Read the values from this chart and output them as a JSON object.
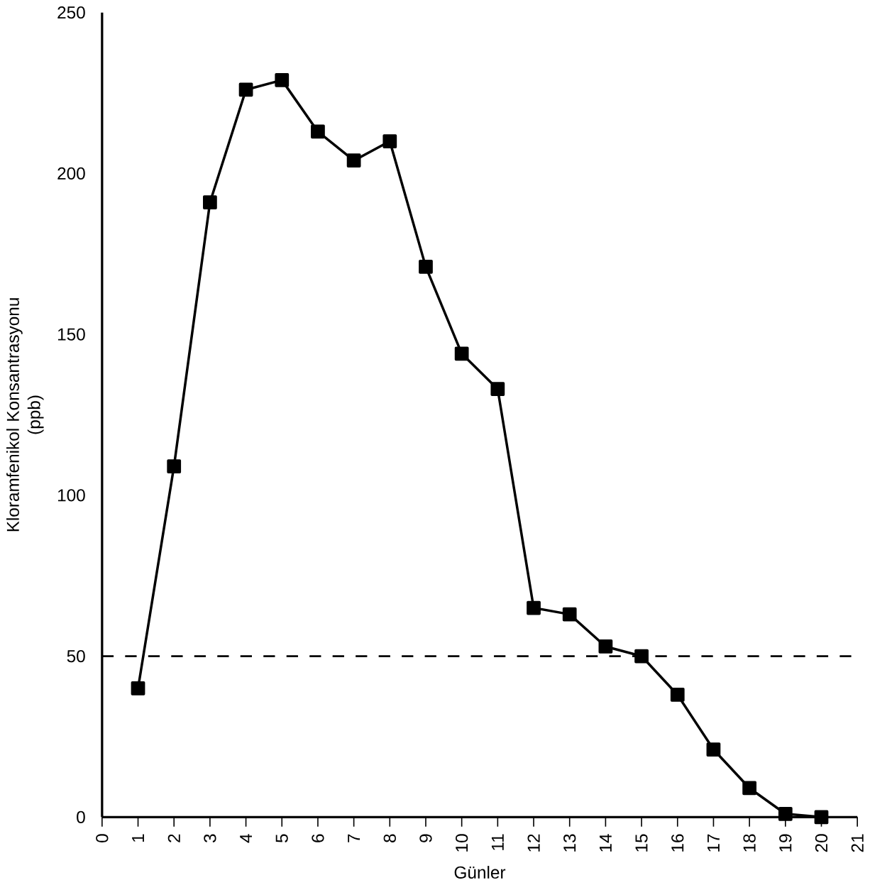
{
  "chart_data": {
    "type": "line",
    "xlabel": "Günler",
    "ylabel": "Kloramfenikol Konsantrasyonu\n(ppb)",
    "x": [
      1,
      2,
      3,
      4,
      5,
      6,
      7,
      8,
      9,
      10,
      11,
      12,
      13,
      14,
      15,
      16,
      17,
      18,
      19,
      20
    ],
    "values": [
      40,
      109,
      191,
      226,
      229,
      213,
      204,
      210,
      171,
      144,
      133,
      65,
      63,
      53,
      50,
      38,
      21,
      9,
      1,
      0
    ],
    "color": "#000000",
    "marker": "square",
    "line_style": "solid",
    "xlim": [
      0,
      21
    ],
    "xticks": [
      0,
      1,
      2,
      3,
      4,
      5,
      6,
      7,
      8,
      9,
      10,
      11,
      12,
      13,
      14,
      15,
      16,
      17,
      18,
      19,
      20,
      21
    ],
    "ylim": [
      0,
      250
    ],
    "yticks": [
      0,
      50,
      100,
      150,
      200,
      250
    ],
    "ref_lines": [
      {
        "axis": "y",
        "value": 50,
        "line_style": "dashed"
      }
    ]
  }
}
